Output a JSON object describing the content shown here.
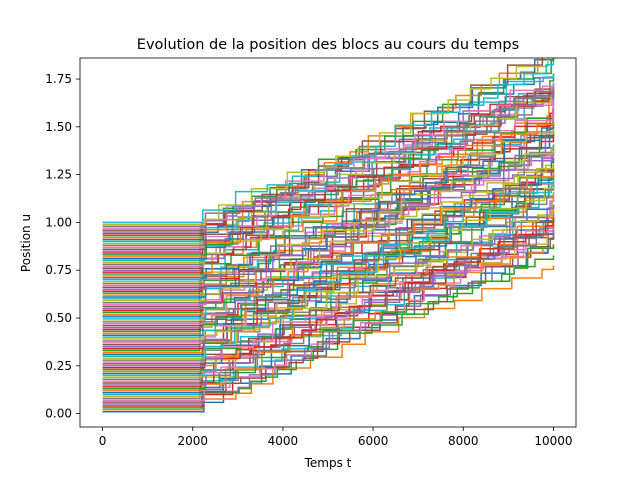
{
  "chart_data": {
    "type": "line",
    "title": "Evolution de la position des blocs au cours du temps",
    "xlabel": "Temps t",
    "ylabel": "Position u",
    "xlim": [
      -500,
      10500
    ],
    "ylim": [
      -0.07,
      1.86
    ],
    "xticks": [
      0,
      2000,
      4000,
      6000,
      8000,
      10000
    ],
    "xtick_labels": [
      "0",
      "2000",
      "4000",
      "6000",
      "8000",
      "10000"
    ],
    "yticks": [
      0.0,
      0.25,
      0.5,
      0.75,
      1.0,
      1.25,
      1.5,
      1.75
    ],
    "ytick_labels": [
      "0.00",
      "0.25",
      "0.50",
      "0.75",
      "1.00",
      "1.25",
      "1.50",
      "1.75"
    ],
    "grid": false,
    "legend": "none",
    "series_count": 100,
    "series_description": "Each series is a stepwise (stick-slip) trajectory of one block; initial positions evenly spaced from 0.01 to 1.00 at t=0; flat until t≈2200, then staircase increase of roughly 0.8 by t=10000.",
    "series": [
      {
        "x": [
          0,
          2200,
          2700,
          3400,
          4000,
          4800,
          5600,
          6200,
          7000,
          7600,
          8400,
          9000,
          9700,
          10000
        ],
        "y": [
          0.01,
          0.06,
          0.1,
          0.14,
          0.18,
          0.24,
          0.3,
          0.38,
          0.44,
          0.52,
          0.6,
          0.66,
          0.74,
          0.82
        ]
      },
      {
        "x": [
          0,
          2200,
          2700,
          3400,
          4000,
          4800,
          5600,
          6200,
          7000,
          7600,
          8400,
          9000,
          9700,
          10000
        ],
        "y": [
          0.25,
          0.31,
          0.36,
          0.41,
          0.46,
          0.52,
          0.58,
          0.65,
          0.71,
          0.78,
          0.85,
          0.91,
          0.98,
          1.05
        ]
      },
      {
        "x": [
          0,
          2200,
          2700,
          3400,
          4000,
          4800,
          5600,
          6200,
          7000,
          7600,
          8400,
          9000,
          9700,
          10000
        ],
        "y": [
          0.5,
          0.56,
          0.61,
          0.66,
          0.71,
          0.77,
          0.83,
          0.9,
          0.96,
          1.03,
          1.1,
          1.16,
          1.23,
          1.3
        ]
      },
      {
        "x": [
          0,
          2200,
          2700,
          3400,
          4000,
          4800,
          5600,
          6200,
          7000,
          7600,
          8400,
          9000,
          9700,
          10000
        ],
        "y": [
          0.75,
          0.81,
          0.86,
          0.91,
          0.96,
          1.02,
          1.08,
          1.15,
          1.21,
          1.28,
          1.35,
          1.41,
          1.48,
          1.55
        ]
      },
      {
        "x": [
          0,
          2250,
          2800,
          3500,
          3700,
          4400,
          4900,
          5600,
          6200,
          6700,
          7300,
          7800,
          8400,
          8600,
          9000,
          9400,
          10000
        ],
        "y": [
          1.0,
          1.03,
          1.05,
          1.07,
          1.12,
          1.19,
          1.22,
          1.29,
          1.34,
          1.38,
          1.43,
          1.46,
          1.52,
          1.61,
          1.67,
          1.72,
          1.81
        ]
      }
    ]
  }
}
